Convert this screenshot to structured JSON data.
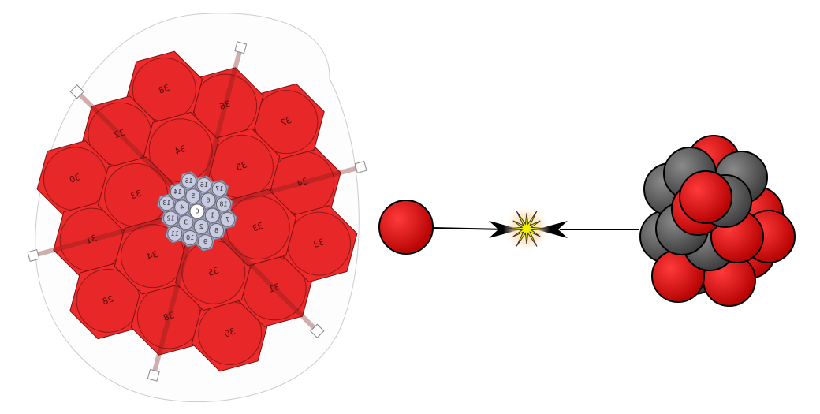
{
  "detector": {
    "modules": [
      {
        "label": "33"
      },
      {
        "label": "35"
      },
      {
        "label": "34"
      },
      {
        "label": "33"
      },
      {
        "label": "34"
      },
      {
        "label": "35"
      },
      {
        "label": "33"
      },
      {
        "label": "31"
      },
      {
        "label": "30"
      },
      {
        "label": "38"
      },
      {
        "label": "28"
      },
      {
        "label": "31"
      },
      {
        "label": "30"
      },
      {
        "label": "32"
      },
      {
        "label": "38"
      },
      {
        "label": "36"
      },
      {
        "label": "32"
      },
      {
        "label": "34"
      }
    ],
    "core": [
      {
        "label": "0"
      },
      {
        "label": "1"
      },
      {
        "label": "2"
      },
      {
        "label": "3"
      },
      {
        "label": "4"
      },
      {
        "label": "5"
      },
      {
        "label": "6"
      },
      {
        "label": "7"
      },
      {
        "label": "8"
      },
      {
        "label": "9"
      },
      {
        "label": "10"
      },
      {
        "label": "11"
      },
      {
        "label": "12"
      },
      {
        "label": "13"
      },
      {
        "label": "14"
      },
      {
        "label": "15"
      },
      {
        "label": "16"
      },
      {
        "label": "17"
      },
      {
        "label": "18"
      }
    ]
  }
}
